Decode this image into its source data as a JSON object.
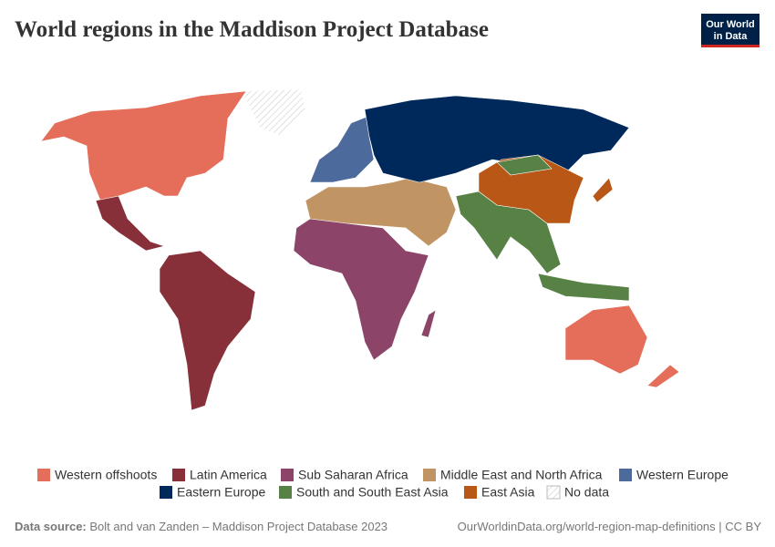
{
  "header": {
    "title": "World regions in the Maddison Project Database",
    "logo": [
      "Our World",
      "in Data"
    ]
  },
  "legend": [
    {
      "name": "Western offshoots",
      "color": "#e56e5a"
    },
    {
      "name": "Latin America",
      "color": "#883039"
    },
    {
      "name": "Sub Saharan Africa",
      "color": "#8c4569"
    },
    {
      "name": "Middle East and North Africa",
      "color": "#c09563"
    },
    {
      "name": "Western Europe",
      "color": "#4c6a9c"
    },
    {
      "name": "Eastern Europe",
      "color": "#00295b"
    },
    {
      "name": "South and South East Asia",
      "color": "#578145"
    },
    {
      "name": "East Asia",
      "color": "#b95716"
    },
    {
      "name": "No data",
      "color": "hatch"
    }
  ],
  "footer": {
    "source_label": "Data source:",
    "source": "Bolt and van Zanden – Maddison Project Database 2023",
    "link": "OurWorldinData.org/world-region-map-definitions | CC BY"
  }
}
